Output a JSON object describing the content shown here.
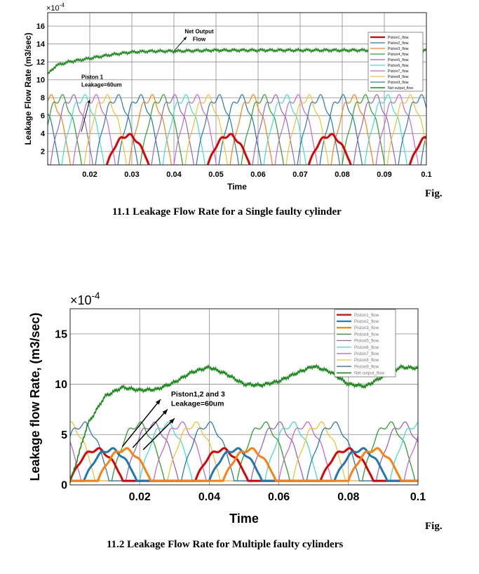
{
  "figures": {
    "fig1_suffix": "Fig.",
    "fig1_caption": "11.1 Leakage Flow Rate for a Single faulty cylinder",
    "fig2_suffix": "Fig.",
    "fig2_caption": "11.2 Leakage Flow Rate for Multiple faulty cylinders"
  },
  "chart_data": [
    {
      "type": "line",
      "title": "",
      "xlabel": "Time",
      "ylabel": "Leakage Flow Rate (m3/sec)",
      "exponent_label": "×10",
      "exponent_power": "-4",
      "xlim": [
        0.01,
        0.1
      ],
      "ylim": [
        0.5,
        17.5
      ],
      "x_ticks": [
        "0.02",
        "0.03",
        "0.04",
        "0.05",
        "0.06",
        "0.07",
        "0.08",
        "0.09",
        "0.1"
      ],
      "x_tick_values": [
        0.02,
        0.03,
        0.04,
        0.05,
        0.06,
        0.07,
        0.08,
        0.09,
        0.1
      ],
      "y_ticks": [
        "2",
        "4",
        "6",
        "8",
        "10",
        "12",
        "14",
        "16"
      ],
      "y_tick_values": [
        2,
        4,
        6,
        8,
        10,
        12,
        14,
        16
      ],
      "grid": true,
      "legend_position": "top-right",
      "piston_period": 0.024,
      "piston_peak": 8,
      "faulty_pistons": [
        1
      ],
      "faulty_peak": 3.8,
      "net_flow": [
        [
          0.01,
          10.6
        ],
        [
          0.012,
          11.6
        ],
        [
          0.015,
          12.0
        ],
        [
          0.02,
          12.4
        ],
        [
          0.025,
          12.8
        ],
        [
          0.03,
          13.1
        ],
        [
          0.035,
          13.2
        ],
        [
          0.04,
          13.2
        ],
        [
          0.05,
          13.3
        ],
        [
          0.06,
          13.3
        ],
        [
          0.07,
          13.3
        ],
        [
          0.08,
          13.3
        ],
        [
          0.09,
          13.3
        ],
        [
          0.1,
          13.3
        ]
      ],
      "series": [
        {
          "name": "Piston1_flow",
          "color": "#e00000",
          "width": 3
        },
        {
          "name": "Piston2_flow",
          "color": "#1f77b4",
          "width": 1.2
        },
        {
          "name": "Piston3_flow",
          "color": "#ff7f0e",
          "width": 1.2
        },
        {
          "name": "Piston4_flow",
          "color": "#2ca02c",
          "width": 1.2
        },
        {
          "name": "Piston5_flow",
          "color": "#9467bd",
          "width": 1.2
        },
        {
          "name": "Piston6_flow",
          "color": "#40e0d0",
          "width": 1.2
        },
        {
          "name": "Piston7_flow",
          "color": "#cc66cc",
          "width": 1.2
        },
        {
          "name": "Piston8_flow",
          "color": "#f2c230",
          "width": 1.2
        },
        {
          "name": "Piston9_flow",
          "color": "#2a7ab0",
          "width": 1.2
        },
        {
          "name": "Net output_flow",
          "color": "#1a8a1a",
          "width": 1.5
        }
      ],
      "annotations": [
        {
          "text": [
            "Net Output",
            "Flow"
          ],
          "x": 0.046,
          "y": 15.2
        },
        {
          "text": [
            "Piston 1",
            "Leakage=60um"
          ],
          "x": 0.018,
          "y": 10.1
        }
      ]
    },
    {
      "type": "line",
      "title": "",
      "xlabel": "Time",
      "ylabel": "Leakage flow Rate, (m3/sec)",
      "exponent_label": "×10",
      "exponent_power": "-4",
      "xlim": [
        0,
        0.1
      ],
      "ylim": [
        0,
        17.5
      ],
      "x_ticks": [
        "0.02",
        "0.04",
        "0.06",
        "0.08",
        "0.1"
      ],
      "x_tick_values": [
        0.02,
        0.04,
        0.06,
        0.08,
        0.1
      ],
      "y_ticks": [
        "0",
        "5",
        "10",
        "15"
      ],
      "y_tick_values": [
        0,
        5,
        10,
        15
      ],
      "grid": true,
      "legend_position": "top-right",
      "piston_period": 0.036,
      "piston_peak": 6,
      "faulty_pistons": [
        1,
        2,
        3
      ],
      "faulty_peak": 3.5,
      "net_flow": [
        [
          0,
          0.2
        ],
        [
          0.005,
          6
        ],
        [
          0.01,
          8.8
        ],
        [
          0.015,
          9.7
        ],
        [
          0.02,
          9.4
        ],
        [
          0.025,
          9.5
        ],
        [
          0.03,
          10.2
        ],
        [
          0.035,
          11.2
        ],
        [
          0.04,
          11.7
        ],
        [
          0.045,
          11.0
        ],
        [
          0.05,
          10.0
        ],
        [
          0.055,
          9.9
        ],
        [
          0.06,
          10.3
        ],
        [
          0.065,
          11.1
        ],
        [
          0.07,
          11.8
        ],
        [
          0.075,
          11.2
        ],
        [
          0.08,
          10.0
        ],
        [
          0.085,
          9.8
        ],
        [
          0.09,
          10.8
        ],
        [
          0.095,
          11.7
        ],
        [
          0.1,
          11.6
        ]
      ],
      "series": [
        {
          "name": "Piston1_flow",
          "color": "#e00000",
          "width": 3
        },
        {
          "name": "Piston2_flow",
          "color": "#1f77b4",
          "width": 3
        },
        {
          "name": "Piston3_flow",
          "color": "#ff7f0e",
          "width": 3
        },
        {
          "name": "Piston4_flow",
          "color": "#2ca02c",
          "width": 1.3
        },
        {
          "name": "Piston5_flow",
          "color": "#9467bd",
          "width": 1.3
        },
        {
          "name": "Piston6_flow",
          "color": "#40e0d0",
          "width": 1.3
        },
        {
          "name": "Piston7_flow",
          "color": "#cc66cc",
          "width": 1.3
        },
        {
          "name": "Piston8_flow",
          "color": "#f2c230",
          "width": 1.3
        },
        {
          "name": "Piston9_flow",
          "color": "#2a7ab0",
          "width": 1.3
        },
        {
          "name": "Net output_flow",
          "color": "#1a8a1a",
          "width": 1.6
        }
      ],
      "annotations": [
        {
          "text": [
            "Piston1,2 and 3",
            "Leakage=60um"
          ],
          "x": 0.029,
          "y": 8.8
        }
      ]
    }
  ]
}
